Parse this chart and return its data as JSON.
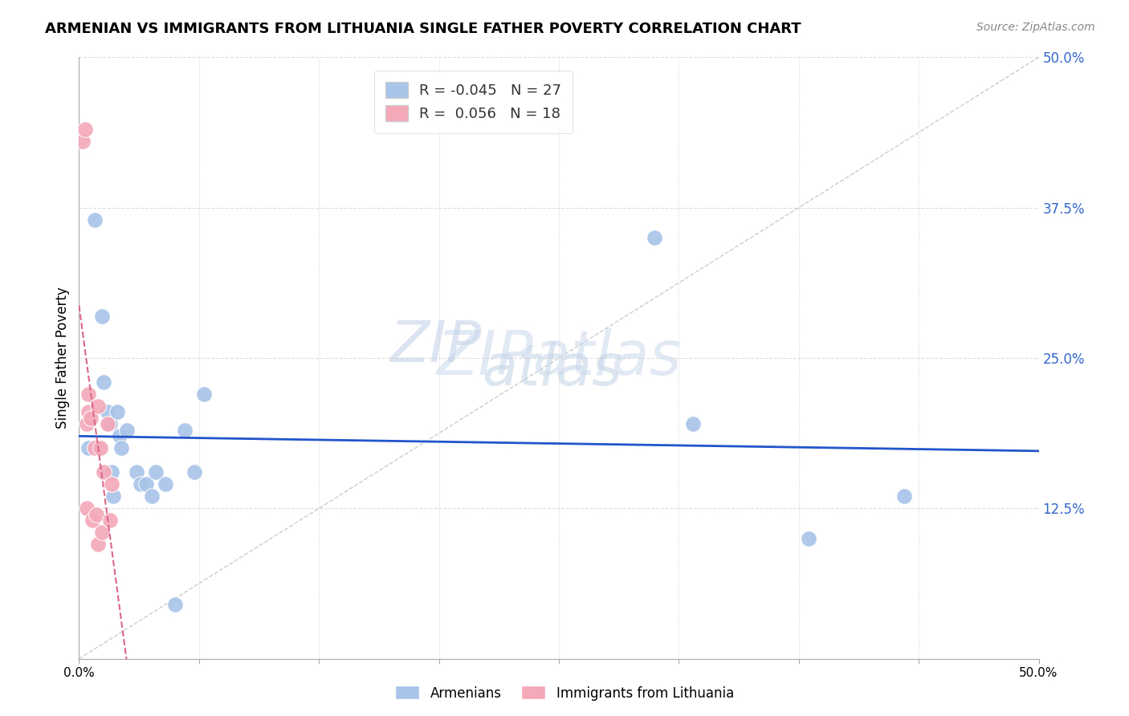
{
  "title": "ARMENIAN VS IMMIGRANTS FROM LITHUANIA SINGLE FATHER POVERTY CORRELATION CHART",
  "source": "Source: ZipAtlas.com",
  "ylabel": "Single Father Poverty",
  "ytick_labels": [
    "50.0%",
    "37.5%",
    "25.0%",
    "12.5%"
  ],
  "ytick_values": [
    0.5,
    0.375,
    0.25,
    0.125
  ],
  "xlim": [
    0.0,
    0.5
  ],
  "ylim": [
    0.0,
    0.5
  ],
  "armenians_color": "#a8c4e8",
  "lithuania_color": "#f4a8b8",
  "trendline_armenians_color": "#2255cc",
  "trendline_lithuania_color": "#dd6688",
  "diagonal_color": "#cccccc",
  "R_armenians": -0.045,
  "N_armenians": 27,
  "R_lithuania": 0.056,
  "N_lithuania": 18,
  "armenians_x": [
    0.005,
    0.008,
    0.01,
    0.012,
    0.013,
    0.015,
    0.016,
    0.017,
    0.018,
    0.02,
    0.021,
    0.022,
    0.025,
    0.03,
    0.032,
    0.035,
    0.038,
    0.04,
    0.045,
    0.05,
    0.055,
    0.06,
    0.065,
    0.3,
    0.32,
    0.38,
    0.43
  ],
  "armenians_y": [
    0.175,
    0.365,
    0.175,
    0.285,
    0.23,
    0.205,
    0.195,
    0.155,
    0.135,
    0.205,
    0.185,
    0.175,
    0.19,
    0.155,
    0.145,
    0.145,
    0.135,
    0.155,
    0.145,
    0.045,
    0.19,
    0.155,
    0.22,
    0.35,
    0.195,
    0.1,
    0.135
  ],
  "lithuania_x": [
    0.002,
    0.003,
    0.004,
    0.004,
    0.005,
    0.005,
    0.006,
    0.007,
    0.008,
    0.009,
    0.01,
    0.01,
    0.011,
    0.012,
    0.013,
    0.015,
    0.016,
    0.017
  ],
  "lithuania_y": [
    0.43,
    0.44,
    0.195,
    0.125,
    0.22,
    0.205,
    0.2,
    0.115,
    0.175,
    0.12,
    0.21,
    0.095,
    0.175,
    0.105,
    0.155,
    0.195,
    0.115,
    0.145
  ],
  "watermark_top": "ZIP",
  "watermark_bottom": "atlas",
  "background_color": "#ffffff",
  "grid_color": "#dddddd",
  "xtick_positions": [
    0.0,
    0.0625,
    0.125,
    0.1875,
    0.25,
    0.3125,
    0.375,
    0.4375,
    0.5
  ],
  "legend_R_armenians": "-0.045",
  "legend_R_lithuania": "0.056"
}
